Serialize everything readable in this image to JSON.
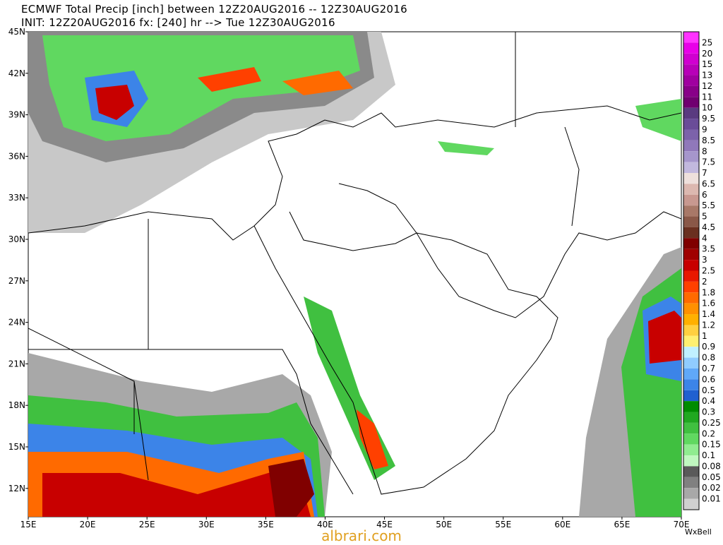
{
  "header": {
    "line1": "ECMWF Total Precip [inch] between 12Z20AUG2016 -- 12Z30AUG2016",
    "line2": "INIT: 12Z20AUG2016 fx: [240] hr --> Tue 12Z30AUG2016"
  },
  "axes": {
    "lat_labels": [
      "45N",
      "42N",
      "39N",
      "36N",
      "33N",
      "30N",
      "27N",
      "24N",
      "21N",
      "18N",
      "15N",
      "12N"
    ],
    "lon_labels": [
      "15E",
      "20E",
      "25E",
      "30E",
      "35E",
      "40E",
      "45E",
      "50E",
      "55E",
      "60E",
      "65E",
      "70E"
    ]
  },
  "legend": {
    "cap_color": "#ff33ff",
    "levels": [
      {
        "label": "25",
        "color": "#e800e8"
      },
      {
        "label": "20",
        "color": "#d000d0"
      },
      {
        "label": "15",
        "color": "#b800b8"
      },
      {
        "label": "13",
        "color": "#a000a0"
      },
      {
        "label": "12",
        "color": "#880088"
      },
      {
        "label": "11",
        "color": "#700070"
      },
      {
        "label": "10",
        "color": "#5a3a80"
      },
      {
        "label": "9.5",
        "color": "#6a4c98"
      },
      {
        "label": "9",
        "color": "#7c62aa"
      },
      {
        "label": "8.5",
        "color": "#9078ba"
      },
      {
        "label": "8",
        "color": "#a696cc"
      },
      {
        "label": "7.5",
        "color": "#c2b8de"
      },
      {
        "label": "7",
        "color": "#eee0dc"
      },
      {
        "label": "6.5",
        "color": "#dcb8b0"
      },
      {
        "label": "6",
        "color": "#c89890"
      },
      {
        "label": "5.5",
        "color": "#a87868"
      },
      {
        "label": "5",
        "color": "#8a5848"
      },
      {
        "label": "4.5",
        "color": "#6a3020"
      },
      {
        "label": "4",
        "color": "#800000"
      },
      {
        "label": "3.5",
        "color": "#a00000"
      },
      {
        "label": "3",
        "color": "#c80000"
      },
      {
        "label": "2.5",
        "color": "#e81800"
      },
      {
        "label": "2",
        "color": "#ff4000"
      },
      {
        "label": "1.8",
        "color": "#ff6a00"
      },
      {
        "label": "1.6",
        "color": "#ff9000"
      },
      {
        "label": "1.4",
        "color": "#ffb000"
      },
      {
        "label": "1.2",
        "color": "#ffd040"
      },
      {
        "label": "1",
        "color": "#fff070"
      },
      {
        "label": "0.9",
        "color": "#c0f0ff"
      },
      {
        "label": "0.8",
        "color": "#90ccff"
      },
      {
        "label": "0.7",
        "color": "#60a8f8"
      },
      {
        "label": "0.6",
        "color": "#3c84e8"
      },
      {
        "label": "0.5",
        "color": "#2060d0"
      },
      {
        "label": "0.4",
        "color": "#008c00"
      },
      {
        "label": "0.3",
        "color": "#20a820"
      },
      {
        "label": "0.25",
        "color": "#40c040"
      },
      {
        "label": "0.2",
        "color": "#60d860"
      },
      {
        "label": "0.15",
        "color": "#90ec90"
      },
      {
        "label": "0.1",
        "color": "#c0f8c0"
      },
      {
        "label": "0.08",
        "color": "#5a5a5a"
      },
      {
        "label": "0.05",
        "color": "#808080"
      },
      {
        "label": "0.02",
        "color": "#a8a8a8"
      },
      {
        "label": "0.01",
        "color": "#d0d0d0"
      }
    ]
  },
  "watermark": "albrari.com",
  "brand": "WxBell"
}
